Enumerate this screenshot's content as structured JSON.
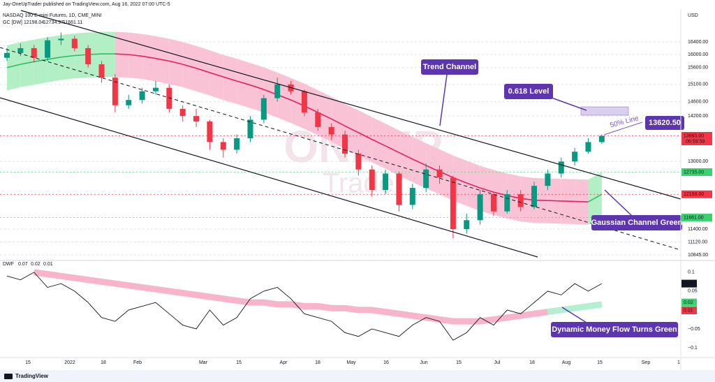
{
  "header": {
    "publisher": "Jay-OneUpTrader published on TradingView.com, Aug 16, 2022 07:00 UTC-5",
    "watermark_top": "ONEUP",
    "watermark_bottom": "Trader",
    "footer": "TradingView"
  },
  "annotations": {
    "trend_channel": "Trend Channel",
    "fib_level": "0.618 Level",
    "target_price": "13620.50",
    "half_line": "50% Line",
    "gaussian_note": "Gaussian Channel Green",
    "flow_note": "Dynamic Money Flow Turns Green"
  },
  "chart_data": [
    {
      "type": "candlestick",
      "title": "NASDAQ 100 E-mini Futures, 1D, CME_MINI",
      "study_label": "GC [DW]",
      "study_values": [
        12198.04,
        12734.97,
        11661.11
      ],
      "study_colors": [
        "#e91e63",
        "#22ab94",
        "#22ab94"
      ],
      "currency": "USD",
      "log_scale": true,
      "grid": true,
      "up_color": "#089981",
      "down_color": "#f23645",
      "ylim": [
        10800,
        17430
      ],
      "yticks": [
        {
          "value": 16400,
          "label": "16400.00"
        },
        {
          "value": 16000,
          "label": "16000.00"
        },
        {
          "value": 15600,
          "label": "15600.00"
        },
        {
          "value": 15100,
          "label": "15100.00"
        },
        {
          "value": 14600,
          "label": "14600.00"
        },
        {
          "value": 14200,
          "label": "14200.00"
        },
        {
          "value": 13000,
          "label": "13000.00"
        },
        {
          "value": 11400,
          "label": "11400.00"
        },
        {
          "value": 11120,
          "label": "11120.00"
        },
        {
          "value": 10845,
          "label": "10845.00"
        }
      ],
      "price_labels": [
        {
          "value": 13665,
          "label": "13665.00",
          "color": "#f23645",
          "text_color": "#ffffff"
        },
        {
          "value": 12735,
          "label": "12735.00",
          "color": "#3cd070",
          "text_color": "#000000"
        },
        {
          "value": 12198,
          "label": "12198.00",
          "color": "#f23645",
          "text_color": "#000000"
        },
        {
          "value": 11661,
          "label": "11661.00",
          "color": "#3cd070",
          "text_color": "#000000"
        }
      ],
      "countdown": "06:59:59",
      "time_labels": [
        "15",
        "2022",
        "18",
        "Feb",
        "Mar",
        "15",
        "Apr",
        "18",
        "May",
        "16",
        "Jun",
        "15",
        "Jul",
        "18",
        "Aug",
        "15",
        "Sep",
        "1"
      ],
      "open": [
        15900,
        16050,
        16200,
        15900,
        16450,
        16500,
        16200,
        15700,
        15300,
        14500,
        14650,
        14900,
        15000,
        14400,
        14200,
        14050,
        13500,
        13300,
        13600,
        14100,
        14700,
        15100,
        14900,
        14300,
        13900,
        13700,
        13200,
        12800,
        12300,
        12700,
        11950,
        12350,
        12800,
        12600,
        11400,
        11600,
        12200,
        11800,
        12200,
        11900,
        12400,
        12700,
        13000,
        13250,
        13500
      ],
      "high": [
        16200,
        16350,
        16300,
        16550,
        16700,
        16600,
        16300,
        15800,
        15400,
        14800,
        15000,
        15200,
        15100,
        14500,
        14400,
        14100,
        13600,
        13700,
        14200,
        14800,
        15300,
        15200,
        14950,
        14400,
        14000,
        13800,
        13300,
        12900,
        12800,
        12750,
        12450,
        12950,
        12900,
        12650,
        11750,
        12300,
        12250,
        12300,
        12300,
        12500,
        12800,
        13100,
        13350,
        13600,
        13700
      ],
      "low": [
        15800,
        15950,
        15750,
        15800,
        16300,
        16100,
        15600,
        15150,
        14300,
        14400,
        14550,
        14800,
        14300,
        14050,
        13900,
        13300,
        13100,
        13200,
        13500,
        14000,
        14600,
        14800,
        14200,
        13800,
        13550,
        13100,
        12650,
        12150,
        12200,
        11800,
        11850,
        12250,
        12450,
        11200,
        11300,
        11500,
        11700,
        11750,
        11800,
        11850,
        12300,
        12600,
        12900,
        13200,
        13450
      ],
      "close": [
        16050,
        16200,
        15900,
        16450,
        16500,
        16200,
        15700,
        15300,
        14500,
        14650,
        14900,
        15000,
        14400,
        14200,
        14050,
        13500,
        13300,
        13600,
        14100,
        14700,
        15100,
        14900,
        14300,
        13900,
        13700,
        13200,
        12800,
        12300,
        12700,
        11950,
        12350,
        12800,
        12600,
        11400,
        11600,
        12200,
        11800,
        12200,
        11900,
        12400,
        12700,
        13000,
        13250,
        13500,
        13665
      ],
      "gaussian": {
        "fill_up": "#b3efc5",
        "fill_down": "#f9c3d5",
        "line_up": "#2fbf62",
        "line_down": "#e91e63",
        "mid": [
          15600,
          15700,
          15780,
          15850,
          15920,
          15970,
          16000,
          16020,
          16020,
          16000,
          15950,
          15880,
          15800,
          15700,
          15580,
          15450,
          15320,
          15200,
          15080,
          14950,
          14800,
          14650,
          14480,
          14300,
          14120,
          13930,
          13750,
          13570,
          13400,
          13230,
          13060,
          12900,
          12750,
          12600,
          12470,
          12350,
          12250,
          12170,
          12100,
          12060,
          12050,
          12040,
          12030,
          12020,
          12198
        ],
        "upper": [
          16290,
          16390,
          16470,
          16550,
          16620,
          16670,
          16700,
          16720,
          16720,
          16700,
          16650,
          16580,
          16500,
          16390,
          16270,
          16130,
          15990,
          15870,
          15740,
          15610,
          15450,
          15290,
          15120,
          14930,
          14740,
          14540,
          14360,
          14170,
          13990,
          13810,
          13640,
          13470,
          13310,
          13150,
          13020,
          12890,
          12790,
          12700,
          12630,
          12590,
          12580,
          12570,
          12560,
          12550,
          12735
        ],
        "lower": [
          14920,
          15020,
          15090,
          15160,
          15230,
          15280,
          15300,
          15320,
          15320,
          15300,
          15260,
          15190,
          15110,
          15020,
          14900,
          14780,
          14650,
          14540,
          14420,
          14300,
          14160,
          14010,
          13850,
          13680,
          13510,
          13320,
          13150,
          12980,
          12820,
          12650,
          12490,
          12340,
          12200,
          12050,
          11930,
          11810,
          11720,
          11640,
          11570,
          11540,
          11530,
          11520,
          11510,
          11500,
          11661
        ]
      }
    },
    {
      "type": "line",
      "title": "DWF",
      "legend_values": [
        0.07,
        0.02,
        0.01
      ],
      "legend_colors": [
        "#131722",
        "#3cd070",
        "#f23645"
      ],
      "color": "#131722",
      "band_bear_color": "#f8b4cb",
      "band_bull_color": "#b3efd0",
      "ylim": [
        -0.126,
        0.122
      ],
      "yticks": [
        0.1,
        0.05,
        {
          "value": -0.05,
          "label": "−0.05"
        },
        {
          "value": -0.1,
          "label": "−0.1"
        }
      ],
      "values": [
        0.09,
        0.08,
        0.1,
        0.06,
        0.07,
        0.05,
        0.02,
        -0.02,
        -0.03,
        0.0,
        0.01,
        0.02,
        -0.01,
        -0.04,
        -0.05,
        0.0,
        -0.04,
        -0.02,
        0.03,
        0.05,
        0.06,
        0.03,
        -0.01,
        -0.02,
        -0.03,
        -0.06,
        -0.07,
        -0.05,
        -0.06,
        -0.07,
        -0.04,
        -0.02,
        -0.03,
        -0.08,
        -0.06,
        -0.02,
        -0.04,
        0.0,
        -0.01,
        0.02,
        0.05,
        0.04,
        0.07,
        0.05,
        0.07
      ],
      "band_bear": [
        null,
        null,
        0.1,
        0.095,
        0.09,
        0.085,
        0.08,
        0.075,
        0.07,
        0.065,
        0.06,
        0.055,
        0.05,
        0.045,
        0.04,
        0.035,
        0.03,
        0.025,
        0.02,
        0.02,
        0.015,
        0.015,
        0.01,
        0.01,
        0.005,
        0.005,
        0.0,
        0.0,
        -0.005,
        -0.01,
        -0.015,
        -0.02,
        -0.025,
        -0.03,
        -0.03,
        -0.03,
        -0.025,
        -0.02,
        -0.015,
        -0.01,
        -0.005,
        null,
        null,
        null,
        null
      ],
      "band_bull": [
        null,
        null,
        null,
        null,
        null,
        null,
        null,
        null,
        null,
        null,
        null,
        null,
        null,
        null,
        null,
        null,
        null,
        null,
        null,
        null,
        null,
        null,
        null,
        null,
        null,
        null,
        null,
        null,
        null,
        null,
        null,
        null,
        null,
        null,
        null,
        null,
        null,
        null,
        null,
        null,
        -0.005,
        0.0,
        0.005,
        0.01,
        0.015
      ]
    }
  ]
}
